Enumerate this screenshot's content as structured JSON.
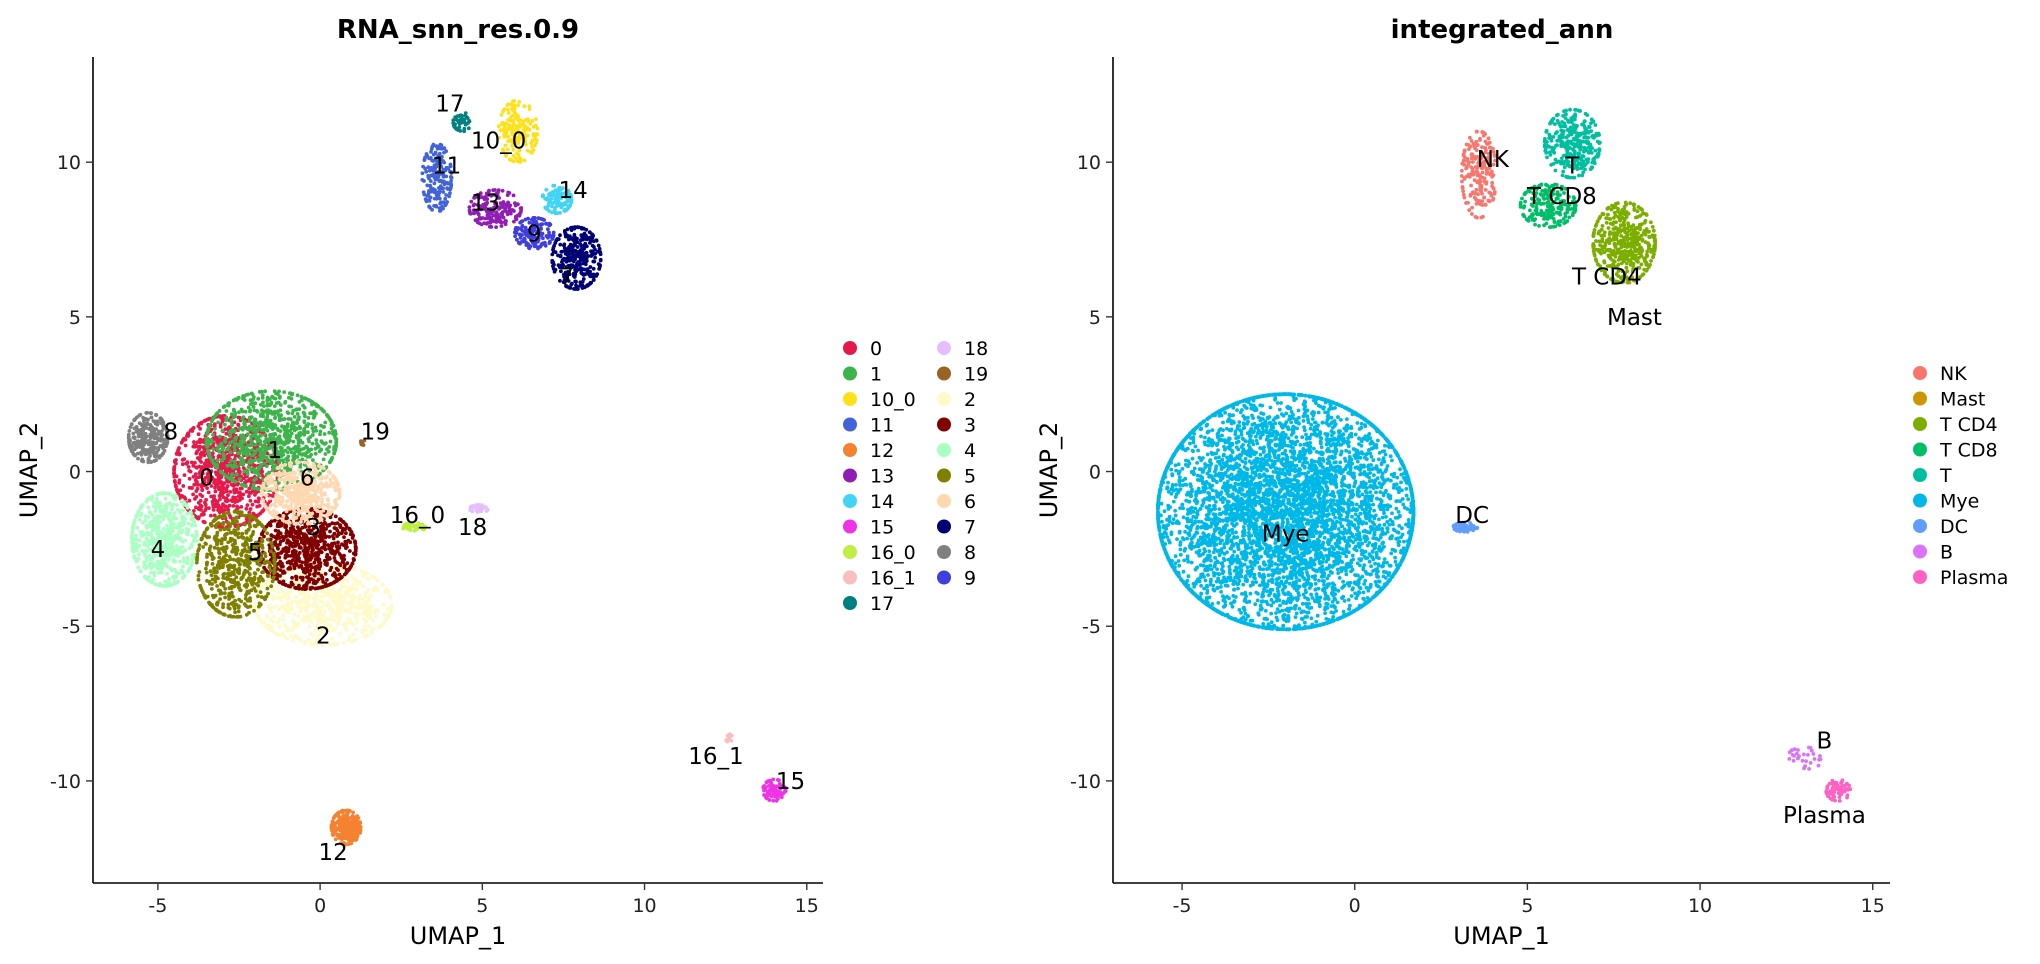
{
  "chart_data": [
    {
      "type": "scatter",
      "title": "RNA_snn_res.0.9",
      "xlabel": "UMAP_1",
      "ylabel": "UMAP_2",
      "xlim": [
        -7,
        15.5
      ],
      "ylim": [
        -13.3,
        13.4
      ],
      "xticks": [
        -5,
        0,
        5,
        10,
        15
      ],
      "yticks": [
        -10,
        -5,
        0,
        5,
        10
      ],
      "xtick_labels": [
        "-5",
        "0",
        "5",
        "10",
        "15"
      ],
      "ytick_labels": [
        "-10",
        "-5",
        "0",
        "5",
        "10"
      ],
      "grid": false,
      "legend_position": "right",
      "legend_columns": 2,
      "series": [
        {
          "name": "0",
          "color": "#E6194B",
          "cx": -2.9,
          "cy": 0.0,
          "rx": 1.6,
          "ry": 1.8,
          "n": 900,
          "label_at": [
            -3.5,
            -0.2
          ]
        },
        {
          "name": "1",
          "color": "#3CB44B",
          "cx": -1.5,
          "cy": 1.0,
          "rx": 2.0,
          "ry": 1.6,
          "n": 850,
          "label_at": [
            -1.4,
            0.7
          ]
        },
        {
          "name": "10_0",
          "color": "#FFE119",
          "cx": 6.1,
          "cy": 11.0,
          "rx": 0.6,
          "ry": 1.0,
          "n": 160,
          "label_at": [
            5.5,
            10.7
          ]
        },
        {
          "name": "11",
          "color": "#4363D8",
          "cx": 3.6,
          "cy": 9.5,
          "rx": 0.45,
          "ry": 1.1,
          "n": 180,
          "label_at": [
            3.9,
            9.9
          ]
        },
        {
          "name": "12",
          "color": "#F58231",
          "cx": 0.8,
          "cy": -11.5,
          "rx": 0.45,
          "ry": 0.55,
          "n": 260,
          "label_at": [
            0.4,
            -12.3
          ]
        },
        {
          "name": "13",
          "color": "#911EB4",
          "cx": 5.4,
          "cy": 8.5,
          "rx": 0.8,
          "ry": 0.6,
          "n": 180,
          "label_at": [
            5.1,
            8.7
          ]
        },
        {
          "name": "14",
          "color": "#42D4F4",
          "cx": 7.3,
          "cy": 8.8,
          "rx": 0.45,
          "ry": 0.45,
          "n": 110,
          "label_at": [
            7.8,
            9.1
          ]
        },
        {
          "name": "15",
          "color": "#F032E6",
          "cx": 14.0,
          "cy": -10.3,
          "rx": 0.35,
          "ry": 0.35,
          "n": 70,
          "label_at": [
            14.5,
            -10.0
          ]
        },
        {
          "name": "16_0",
          "color": "#BFEF45",
          "cx": 2.9,
          "cy": -1.8,
          "rx": 0.35,
          "ry": 0.15,
          "n": 50,
          "label_at": [
            3.0,
            -1.4
          ]
        },
        {
          "name": "16_1",
          "color": "#FABEBE",
          "cx": 12.6,
          "cy": -8.6,
          "rx": 0.1,
          "ry": 0.15,
          "n": 10,
          "label_at": [
            12.2,
            -9.2
          ]
        },
        {
          "name": "17",
          "color": "#008080",
          "cx": 4.4,
          "cy": 11.3,
          "rx": 0.3,
          "ry": 0.3,
          "n": 45,
          "label_at": [
            4.0,
            11.9
          ]
        },
        {
          "name": "18",
          "color": "#E6BEFF",
          "cx": 4.9,
          "cy": -1.2,
          "rx": 0.3,
          "ry": 0.12,
          "n": 35,
          "label_at": [
            4.7,
            -1.8
          ]
        },
        {
          "name": "19",
          "color": "#9A6324",
          "cx": 1.3,
          "cy": 0.9,
          "rx": 0.12,
          "ry": 0.12,
          "n": 8,
          "label_at": [
            1.7,
            1.3
          ]
        },
        {
          "name": "2",
          "color": "#FFFAC8",
          "cx": 0.1,
          "cy": -4.3,
          "rx": 2.1,
          "ry": 1.3,
          "n": 650,
          "label_at": [
            0.1,
            -5.3
          ]
        },
        {
          "name": "3",
          "color": "#800000",
          "cx": -0.4,
          "cy": -2.5,
          "rx": 1.5,
          "ry": 1.3,
          "n": 750,
          "label_at": [
            -0.2,
            -1.8
          ]
        },
        {
          "name": "4",
          "color": "#AAFFC3",
          "cx": -4.8,
          "cy": -2.2,
          "rx": 1.0,
          "ry": 1.5,
          "n": 550,
          "label_at": [
            -5.0,
            -2.5
          ]
        },
        {
          "name": "5",
          "color": "#808000",
          "cx": -2.6,
          "cy": -3.0,
          "rx": 1.2,
          "ry": 1.7,
          "n": 550,
          "label_at": [
            -2.0,
            -2.6
          ]
        },
        {
          "name": "6",
          "color": "#FFD8B1",
          "cx": -0.6,
          "cy": -0.7,
          "rx": 1.2,
          "ry": 1.0,
          "n": 450,
          "label_at": [
            -0.4,
            -0.2
          ]
        },
        {
          "name": "7",
          "color": "#000075",
          "cx": 7.9,
          "cy": 6.9,
          "rx": 0.75,
          "ry": 1.0,
          "n": 320,
          "label_at": [
            7.6,
            6.3
          ]
        },
        {
          "name": "8",
          "color": "#808080",
          "cx": -5.3,
          "cy": 1.1,
          "rx": 0.6,
          "ry": 0.8,
          "n": 250,
          "label_at": [
            -4.6,
            1.3
          ]
        },
        {
          "name": "9",
          "color": "#3F3FE0",
          "cx": 6.6,
          "cy": 7.7,
          "rx": 0.6,
          "ry": 0.5,
          "n": 150,
          "label_at": [
            6.6,
            7.7
          ]
        }
      ]
    },
    {
      "type": "scatter",
      "title": "integrated_ann",
      "xlabel": "UMAP_1",
      "ylabel": "UMAP_2",
      "xlim": [
        -7,
        15.5
      ],
      "ylim": [
        -13.3,
        13.4
      ],
      "xticks": [
        -5,
        0,
        5,
        10,
        15
      ],
      "yticks": [
        -10,
        -5,
        0,
        5,
        10
      ],
      "xtick_labels": [
        "-5",
        "0",
        "5",
        "10",
        "15"
      ],
      "ytick_labels": [
        "-10",
        "-5",
        "0",
        "5",
        "10"
      ],
      "grid": false,
      "legend_position": "right",
      "legend_columns": 1,
      "series": [
        {
          "name": "NK",
          "color": "#F8766D",
          "cx": 3.6,
          "cy": 9.6,
          "rx": 0.5,
          "ry": 1.4,
          "n": 200,
          "label_at": [
            4.0,
            10.1
          ]
        },
        {
          "name": "Mast",
          "color": "#CD9600",
          "cx": 8.0,
          "cy": 6.2,
          "rx": 0.1,
          "ry": 0.1,
          "n": 4,
          "label_at": [
            8.1,
            5.0
          ]
        },
        {
          "name": "T CD4",
          "color": "#7CAE00",
          "cx": 7.8,
          "cy": 7.4,
          "rx": 0.9,
          "ry": 1.3,
          "n": 450,
          "label_at": [
            7.3,
            6.3
          ]
        },
        {
          "name": "T CD8",
          "color": "#00BE67",
          "cx": 5.6,
          "cy": 8.6,
          "rx": 0.8,
          "ry": 0.7,
          "n": 200,
          "label_at": [
            6.0,
            8.9
          ]
        },
        {
          "name": "T",
          "color": "#00BFA0",
          "cx": 6.3,
          "cy": 10.6,
          "rx": 0.8,
          "ry": 1.1,
          "n": 320,
          "label_at": [
            6.3,
            9.9
          ]
        },
        {
          "name": "Mye",
          "color": "#00B8E7",
          "cx": -2.0,
          "cy": -1.3,
          "rx": 3.7,
          "ry": 3.8,
          "n": 5400,
          "label_at": [
            -2.0,
            -2.0
          ]
        },
        {
          "name": "DC",
          "color": "#619CFF",
          "cx": 3.2,
          "cy": -1.8,
          "rx": 0.35,
          "ry": 0.15,
          "n": 60,
          "label_at": [
            3.4,
            -1.4
          ]
        },
        {
          "name": "B",
          "color": "#DB72FB",
          "cx": 13.0,
          "cy": -9.3,
          "rx": 0.5,
          "ry": 0.4,
          "n": 30,
          "label_at": [
            13.6,
            -8.7
          ]
        },
        {
          "name": "Plasma",
          "color": "#FF61C3",
          "cx": 14.0,
          "cy": -10.3,
          "rx": 0.35,
          "ry": 0.35,
          "n": 70,
          "label_at": [
            13.6,
            -11.1
          ]
        }
      ]
    }
  ]
}
